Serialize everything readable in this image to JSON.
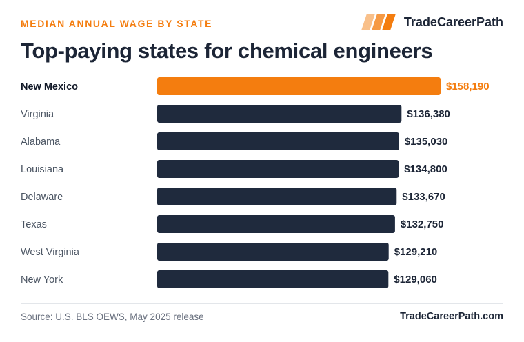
{
  "header": {
    "kicker": "MEDIAN ANNUAL WAGE BY STATE",
    "brand": "TradeCareerPath",
    "title": "Top-paying states for chemical engineers"
  },
  "footer": {
    "source": "Source: U.S. BLS OEWS, May 2025 release",
    "site": "TradeCareerPath.com"
  },
  "colors": {
    "highlight": "#f47d0f",
    "bar": "#1f2a3d",
    "label": "#4b5563",
    "value": "#1c2536"
  },
  "chart_data": {
    "type": "bar",
    "orientation": "horizontal",
    "categories": [
      "New Mexico",
      "Virginia",
      "Alabama",
      "Louisiana",
      "Delaware",
      "Texas",
      "West Virginia",
      "New York"
    ],
    "values": [
      158190,
      136380,
      135030,
      134800,
      133670,
      132750,
      129210,
      129060
    ],
    "value_labels": [
      "$158,190",
      "$136,380",
      "$135,030",
      "$134,800",
      "$133,670",
      "$132,750",
      "$129,210",
      "$129,060"
    ],
    "highlighted": "New Mexico",
    "xlim": [
      0,
      158190
    ],
    "grid": false,
    "legend": "none"
  }
}
